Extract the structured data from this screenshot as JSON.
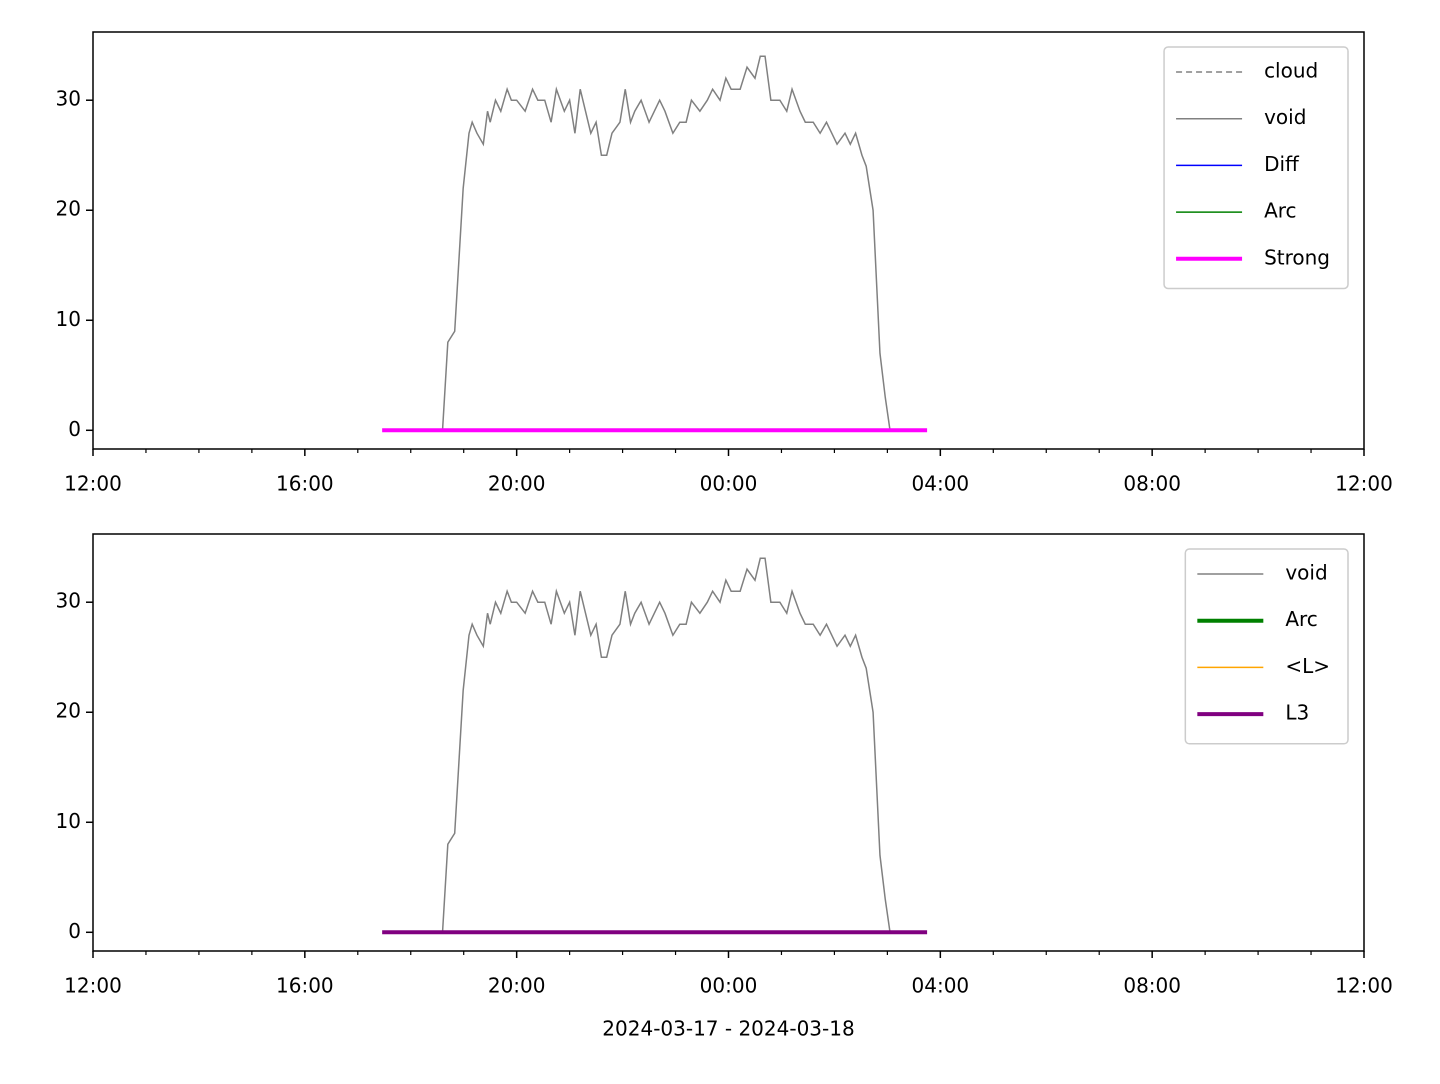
{
  "chart_data": [
    {
      "type": "line",
      "legend": "upper right",
      "xlim": [
        12,
        36
      ],
      "ylim": [
        -1.7,
        36.2
      ],
      "xticks": [
        {
          "value": 12,
          "label": "12:00"
        },
        {
          "value": 16,
          "label": "16:00"
        },
        {
          "value": 20,
          "label": "20:00"
        },
        {
          "value": 24,
          "label": "00:00"
        },
        {
          "value": 28,
          "label": "04:00"
        },
        {
          "value": 32,
          "label": "08:00"
        },
        {
          "value": 36,
          "label": "12:00"
        }
      ],
      "xminorticks": [
        13,
        14,
        15,
        17,
        18,
        19,
        21,
        22,
        23,
        25,
        26,
        27,
        29,
        30,
        31,
        33,
        34,
        35
      ],
      "yticks": [
        0,
        10,
        20,
        30
      ],
      "series": [
        {
          "name": "cloud",
          "color": "#808080",
          "linestyle": "dashed",
          "linewidth": 1.5,
          "x": [],
          "values": []
        },
        {
          "name": "void",
          "color": "#808080",
          "linestyle": "solid",
          "linewidth": 1.5,
          "x": [
            18.6,
            18.7,
            18.83,
            18.99,
            19.1,
            19.16,
            19.25,
            19.37,
            19.45,
            19.5,
            19.6,
            19.7,
            19.82,
            19.9,
            20.0,
            20.16,
            20.3,
            20.4,
            20.53,
            20.65,
            20.75,
            20.9,
            21.0,
            21.1,
            21.2,
            21.3,
            21.4,
            21.5,
            21.6,
            21.7,
            21.8,
            21.95,
            22.05,
            22.15,
            22.23,
            22.35,
            22.5,
            22.6,
            22.7,
            22.8,
            22.95,
            23.08,
            23.2,
            23.3,
            23.46,
            23.6,
            23.7,
            23.84,
            23.95,
            24.05,
            24.22,
            24.35,
            24.5,
            24.6,
            24.69,
            24.8,
            24.97,
            25.1,
            25.2,
            25.35,
            25.45,
            25.6,
            25.73,
            25.85,
            25.95,
            26.05,
            26.2,
            26.3,
            26.4,
            26.52,
            26.6,
            26.73,
            26.8,
            26.86,
            26.96,
            27.05
          ],
          "values": [
            0,
            8,
            9,
            22,
            27,
            28,
            27,
            26,
            29,
            28,
            30,
            29,
            31,
            30,
            30,
            29,
            31,
            30,
            30,
            28,
            31,
            29,
            30,
            27,
            31,
            29,
            27,
            28,
            25,
            25,
            27,
            28,
            31,
            28,
            29,
            30,
            28,
            29,
            30,
            29,
            27,
            28,
            28,
            30,
            29,
            30,
            31,
            30,
            32,
            31,
            31,
            33,
            32,
            34,
            34,
            30,
            30,
            29,
            31,
            29,
            28,
            28,
            27,
            28,
            27,
            26,
            27,
            26,
            27,
            25,
            24,
            20,
            13,
            7,
            3,
            0
          ]
        },
        {
          "name": "Diff",
          "color": "#0000ff",
          "linestyle": "solid",
          "linewidth": 1.5,
          "x": [],
          "values": []
        },
        {
          "name": "Arc",
          "color": "#008000",
          "linestyle": "solid",
          "linewidth": 1.5,
          "x": [],
          "values": []
        },
        {
          "name": "Strong",
          "color": "#ff00ff",
          "linestyle": "solid",
          "linewidth": 4,
          "x": [
            17.46,
            27.75
          ],
          "values": [
            0,
            0
          ]
        }
      ]
    },
    {
      "type": "line",
      "legend": "upper right",
      "xlabel": "2024-03-17 - 2024-03-18",
      "xlim": [
        12,
        36
      ],
      "ylim": [
        -1.7,
        36.2
      ],
      "xticks": [
        {
          "value": 12,
          "label": "12:00"
        },
        {
          "value": 16,
          "label": "16:00"
        },
        {
          "value": 20,
          "label": "20:00"
        },
        {
          "value": 24,
          "label": "00:00"
        },
        {
          "value": 28,
          "label": "04:00"
        },
        {
          "value": 32,
          "label": "08:00"
        },
        {
          "value": 36,
          "label": "12:00"
        }
      ],
      "xminorticks": [
        13,
        14,
        15,
        17,
        18,
        19,
        21,
        22,
        23,
        25,
        26,
        27,
        29,
        30,
        31,
        33,
        34,
        35
      ],
      "yticks": [
        0,
        10,
        20,
        30
      ],
      "series": [
        {
          "name": "void",
          "color": "#808080",
          "linestyle": "solid",
          "linewidth": 1.5,
          "x": [
            18.6,
            18.7,
            18.83,
            18.99,
            19.1,
            19.16,
            19.25,
            19.37,
            19.45,
            19.5,
            19.6,
            19.7,
            19.82,
            19.9,
            20.0,
            20.16,
            20.3,
            20.4,
            20.53,
            20.65,
            20.75,
            20.9,
            21.0,
            21.1,
            21.2,
            21.3,
            21.4,
            21.5,
            21.6,
            21.7,
            21.8,
            21.95,
            22.05,
            22.15,
            22.23,
            22.35,
            22.5,
            22.6,
            22.7,
            22.8,
            22.95,
            23.08,
            23.2,
            23.3,
            23.46,
            23.6,
            23.7,
            23.84,
            23.95,
            24.05,
            24.22,
            24.35,
            24.5,
            24.6,
            24.69,
            24.8,
            24.97,
            25.1,
            25.2,
            25.35,
            25.45,
            25.6,
            25.73,
            25.85,
            25.95,
            26.05,
            26.2,
            26.3,
            26.4,
            26.52,
            26.6,
            26.73,
            26.8,
            26.86,
            26.96,
            27.05
          ],
          "values": [
            0,
            8,
            9,
            22,
            27,
            28,
            27,
            26,
            29,
            28,
            30,
            29,
            31,
            30,
            30,
            29,
            31,
            30,
            30,
            28,
            31,
            29,
            30,
            27,
            31,
            29,
            27,
            28,
            25,
            25,
            27,
            28,
            31,
            28,
            29,
            30,
            28,
            29,
            30,
            29,
            27,
            28,
            28,
            30,
            29,
            30,
            31,
            30,
            32,
            31,
            31,
            33,
            32,
            34,
            34,
            30,
            30,
            29,
            31,
            29,
            28,
            28,
            27,
            28,
            27,
            26,
            27,
            26,
            27,
            25,
            24,
            20,
            13,
            7,
            3,
            0
          ]
        },
        {
          "name": "Arc",
          "color": "#008000",
          "linestyle": "solid",
          "linewidth": 4,
          "x": [],
          "values": []
        },
        {
          "name": "<L>",
          "color": "#ffa500",
          "linestyle": "solid",
          "linewidth": 1.5,
          "x": [],
          "values": []
        },
        {
          "name": "L3",
          "color": "#800080",
          "linestyle": "solid",
          "linewidth": 4,
          "x": [
            17.46,
            27.75
          ],
          "values": [
            0,
            0
          ]
        }
      ]
    }
  ]
}
